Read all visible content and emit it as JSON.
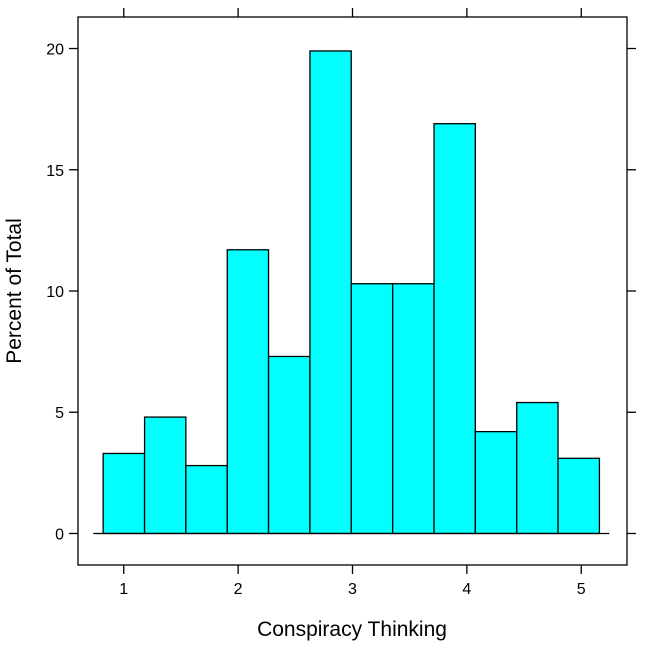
{
  "chart_data": {
    "type": "bar",
    "title": "",
    "xlabel": "Conspiracy Thinking",
    "ylabel": "Percent of Total",
    "xlim": [
      0.6,
      5.4
    ],
    "ylim": [
      -1.3,
      21.3
    ],
    "xticks": [
      1,
      2,
      3,
      4,
      5
    ],
    "xtick_labels": [
      "1",
      "2",
      "3",
      "4",
      "5"
    ],
    "yticks": [
      0,
      5,
      10,
      15,
      20
    ],
    "ytick_labels": [
      "0",
      "5",
      "10",
      "15",
      "20"
    ],
    "bin_edges": [
      0.82,
      1.182,
      1.543,
      1.905,
      2.266,
      2.628,
      2.989,
      3.351,
      3.713,
      4.074,
      4.436,
      4.797,
      5.159
    ],
    "values": [
      3.3,
      4.8,
      2.8,
      11.7,
      7.3,
      19.9,
      10.3,
      10.3,
      16.9,
      4.2,
      5.4,
      3.1
    ],
    "bar_color": "#00ffff",
    "edge_color": "#000000",
    "grid": false,
    "legend": false
  }
}
